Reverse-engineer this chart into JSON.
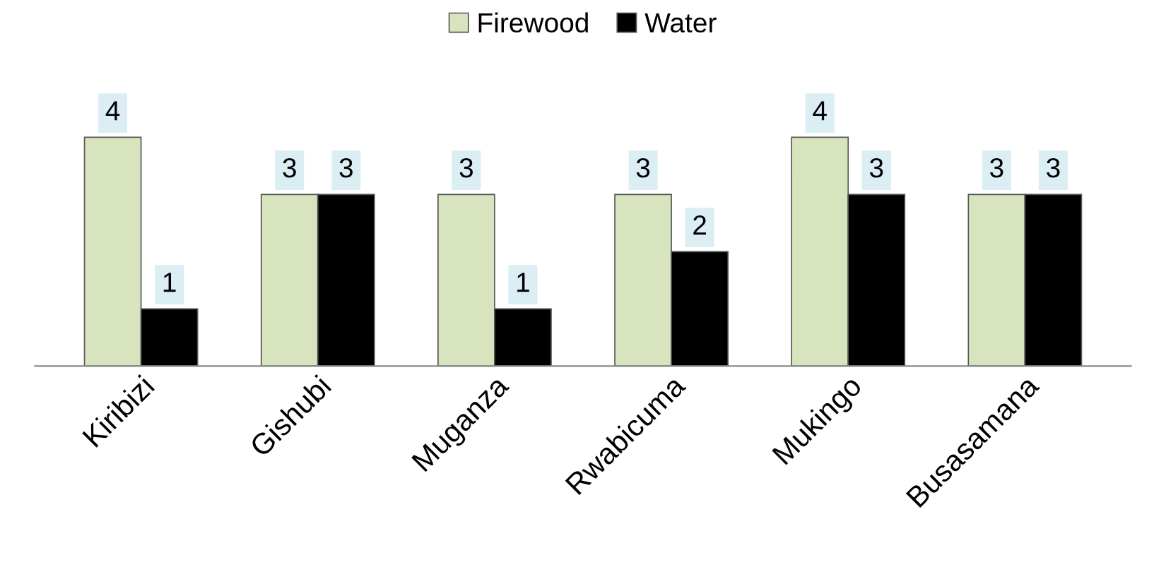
{
  "chart_data": {
    "type": "bar",
    "categories": [
      "Kiribizi",
      "Gishubi",
      "Muganza",
      "Rwabicuma",
      "Mukingo",
      "Busasamana"
    ],
    "series": [
      {
        "name": "Firewood",
        "color": "#d7e4bd",
        "values": [
          4,
          3,
          3,
          3,
          4,
          3
        ]
      },
      {
        "name": "Water",
        "color": "#000000",
        "values": [
          1,
          3,
          1,
          2,
          3,
          3
        ]
      }
    ],
    "data_labels": true,
    "legend": "top"
  }
}
